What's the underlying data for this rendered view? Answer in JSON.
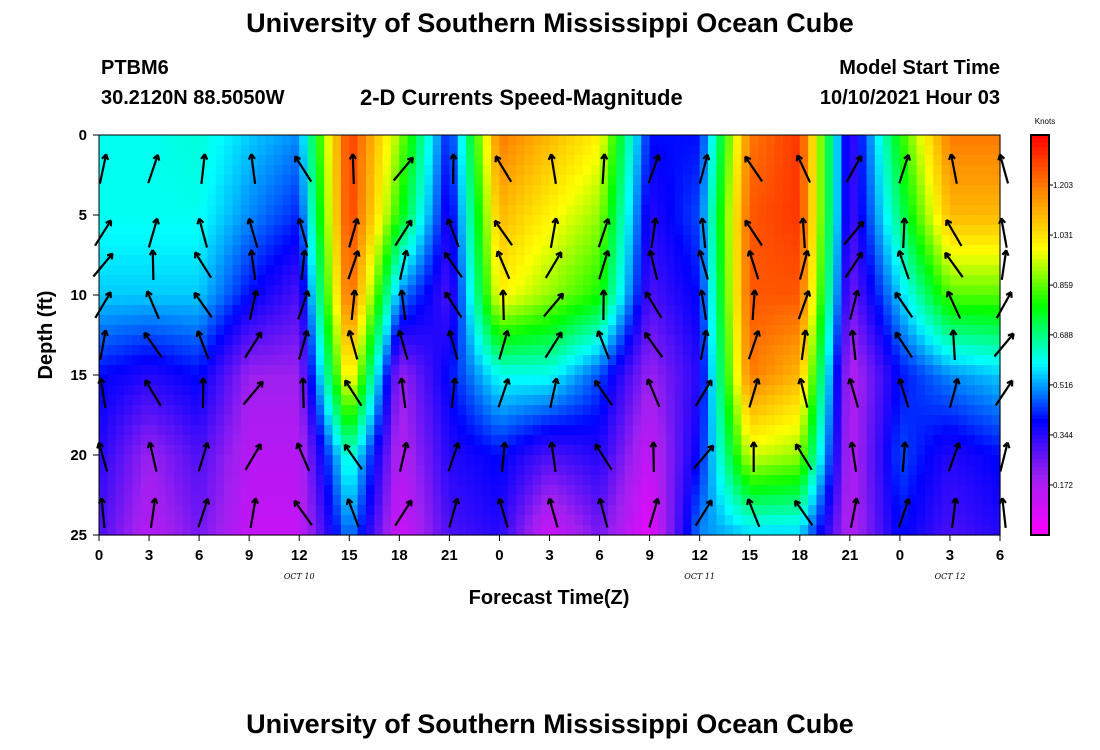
{
  "header": {
    "title_top": "University of Southern Mississippi Ocean Cube",
    "station": "PTBM6",
    "coords": "30.2120N  88.5050W",
    "plot_title": "2-D Currents Speed-Magnitude",
    "model_label": "Model Start Time",
    "model_time": "10/10/2021 Hour 03",
    "title_bottom": "University of Southern Mississippi Ocean Cube"
  },
  "chart_data": {
    "type": "heatmap",
    "title": "2-D Currents Speed-Magnitude",
    "xlabel": "Forecast Time(Z)",
    "ylabel": "Depth (ft)",
    "x_tick_labels": [
      "0",
      "3",
      "6",
      "9",
      "12",
      "15",
      "18",
      "21",
      "0",
      "3",
      "6",
      "9",
      "12",
      "15",
      "18",
      "21",
      "0",
      "3",
      "6"
    ],
    "x_day_labels": [
      {
        "text": "OCT 10",
        "tick_index": 4
      },
      {
        "text": "OCT 11",
        "tick_index": 12
      },
      {
        "text": "OCT 12",
        "tick_index": 17
      }
    ],
    "y_ticks": [
      0,
      5,
      10,
      15,
      20,
      25
    ],
    "y_tick_labels": [
      "0",
      "5",
      "10",
      "15",
      "20",
      "25"
    ],
    "ylim": [
      0,
      25
    ],
    "colorbar": {
      "unit": "Knots",
      "tick_values": [
        "1.203",
        "1.031",
        "0.859",
        "0.688",
        "0.516",
        "0.344",
        "0.172"
      ],
      "range": [
        0.0,
        1.375
      ],
      "colors": [
        "#ff00ff",
        "#a020f0",
        "#0000ff",
        "#00ffff",
        "#00ff00",
        "#ffff00",
        "#ff8800",
        "#ff0000"
      ]
    },
    "speed_field": {
      "time_hours": [
        0,
        3,
        6,
        9,
        12,
        15,
        18,
        21,
        24,
        27,
        30,
        33,
        36,
        39,
        42,
        45,
        48,
        51,
        54
      ],
      "depth_ft": [
        0,
        5,
        10,
        15,
        20,
        25
      ],
      "values_knots": [
        [
          0.6,
          0.6,
          0.62,
          0.55,
          0.5,
          1.3,
          0.9,
          0.4,
          1.2,
          1.1,
          1.0,
          0.4,
          0.4,
          1.2,
          1.3,
          0.3,
          0.8,
          1.2,
          1.2
        ],
        [
          0.6,
          0.6,
          0.6,
          0.5,
          0.42,
          1.3,
          0.8,
          0.35,
          1.1,
          1.0,
          0.9,
          0.35,
          0.45,
          1.25,
          1.3,
          0.3,
          0.7,
          1.1,
          1.1
        ],
        [
          0.55,
          0.55,
          0.55,
          0.4,
          0.3,
          1.25,
          0.5,
          0.3,
          1.0,
          0.9,
          0.8,
          0.3,
          0.4,
          1.25,
          1.25,
          0.25,
          0.55,
          0.85,
          0.85
        ],
        [
          0.4,
          0.35,
          0.4,
          0.2,
          0.2,
          1.05,
          0.2,
          0.4,
          0.6,
          0.6,
          0.45,
          0.2,
          0.35,
          1.2,
          1.1,
          0.15,
          0.4,
          0.5,
          0.55
        ],
        [
          0.35,
          0.2,
          0.3,
          0.15,
          0.15,
          0.65,
          0.15,
          0.35,
          0.4,
          0.3,
          0.35,
          0.12,
          0.4,
          0.95,
          0.9,
          0.15,
          0.45,
          0.35,
          0.4
        ],
        [
          0.3,
          0.15,
          0.25,
          0.12,
          0.12,
          0.5,
          0.1,
          0.3,
          0.35,
          0.1,
          0.25,
          0.05,
          0.5,
          0.55,
          0.55,
          0.15,
          0.4,
          0.3,
          0.35
        ]
      ]
    }
  }
}
